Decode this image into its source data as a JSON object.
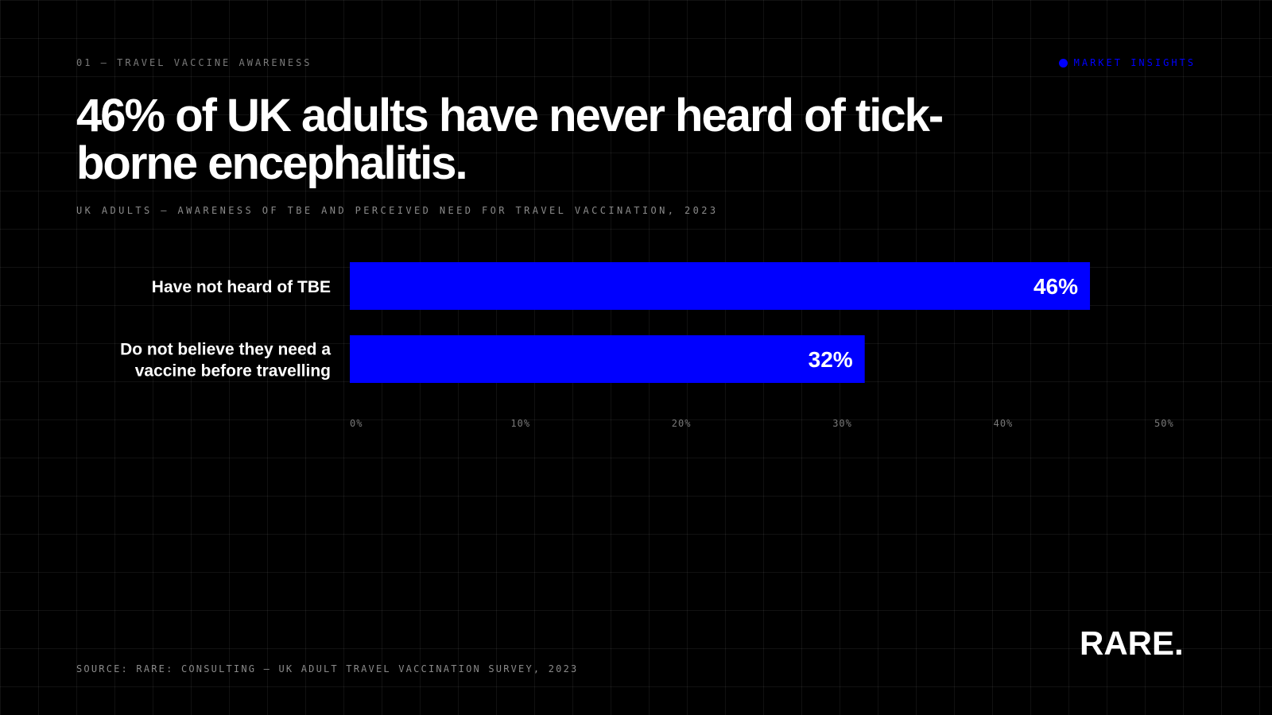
{
  "header": {
    "eyebrow": "01 — TRAVEL VACCINE AWARENESS",
    "tag": "MARKET INSIGHTS",
    "title": "46% of UK adults have never heard of tick-borne encephalitis.",
    "subtitle": "UK ADULTS — AWARENESS OF TBE AND PERCEIVED NEED FOR TRAVEL VACCINATION, 2023"
  },
  "footer": {
    "source": "SOURCE: RARE: CONSULTING — UK ADULT TRAVEL VACCINATION SURVEY, 2023",
    "logo": "RARE."
  },
  "colors": {
    "background": "#000000",
    "bar": "#0000ff",
    "accent": "#0000ff",
    "text": "#ffffff",
    "muted": "#8a8a8a"
  },
  "chart_data": {
    "type": "bar",
    "orientation": "horizontal",
    "categories": [
      [
        "Have not heard of TBE"
      ],
      [
        "Do not believe they need a",
        "vaccine before travelling"
      ]
    ],
    "values": [
      46,
      32
    ],
    "value_labels": [
      "46%",
      "32%"
    ],
    "xlim": [
      0,
      50
    ],
    "xticks": [
      0,
      10,
      20,
      30,
      40,
      50
    ],
    "xtick_labels": [
      "0%",
      "10%",
      "20%",
      "30%",
      "40%",
      "50%"
    ],
    "title": "",
    "xlabel": "",
    "ylabel": "",
    "grid": false,
    "legend": "none"
  }
}
